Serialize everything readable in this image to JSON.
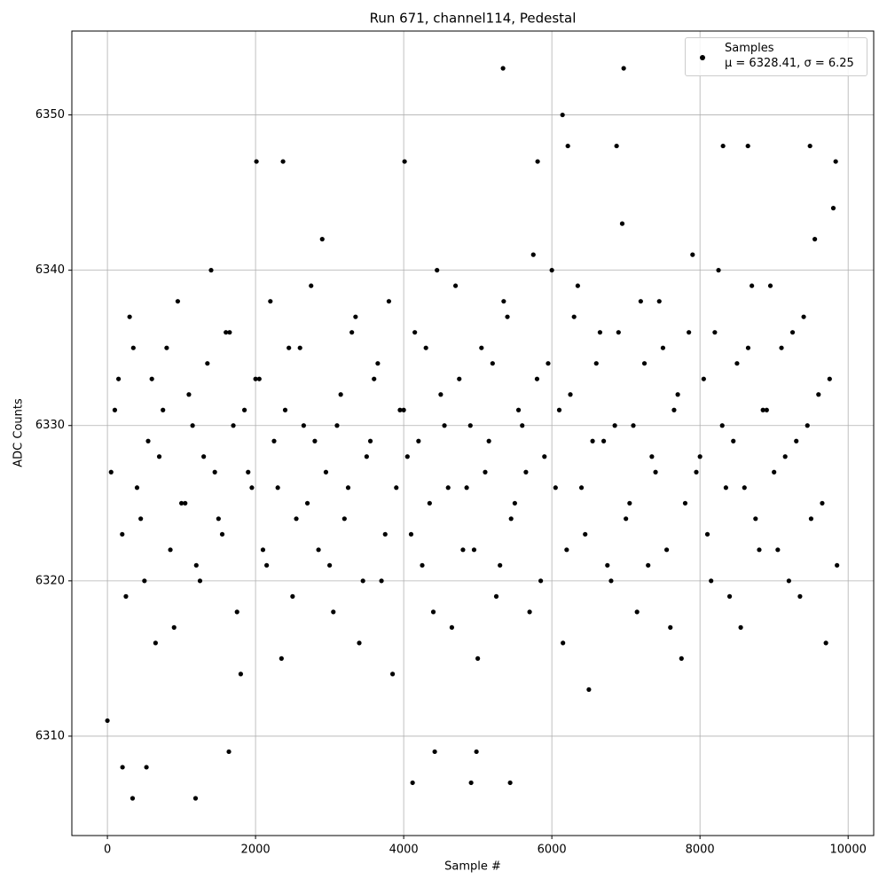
{
  "chart_data": {
    "type": "scatter",
    "title": "Run 671, channel114, Pedestal",
    "x_label": "Sample #",
    "y_label": "ADC Counts",
    "xlim": [
      -480,
      10345
    ],
    "ylim": [
      6303.6,
      6355.4
    ],
    "xticks": [
      0,
      2000,
      4000,
      6000,
      8000,
      10000
    ],
    "yticks": [
      6310,
      6320,
      6330,
      6340,
      6350
    ],
    "grid": true,
    "legend": "upper right",
    "x": [
      0,
      340,
      1190,
      5341,
      6970,
      6144,
      4120,
      5437,
      4910,
      204,
      527,
      1640,
      4419,
      4982,
      2012,
      2371,
      5808,
      4012,
      6216,
      6874,
      8311,
      8647,
      9485,
      9832,
      50,
      150,
      250,
      350,
      450,
      550,
      650,
      750,
      850,
      950,
      1050,
      1150,
      1250,
      1350,
      1450,
      1550,
      1650,
      1750,
      1850,
      1950,
      2050,
      2150,
      2250,
      2350,
      2450,
      2550,
      2650,
      2750,
      2850,
      2950,
      3050,
      3150,
      3250,
      3350,
      3450,
      3550,
      3650,
      3750,
      3850,
      3950,
      4050,
      4150,
      4250,
      4350,
      4450,
      4550,
      4650,
      4750,
      4850,
      4950,
      5050,
      5150,
      5250,
      5350,
      5450,
      5550,
      5650,
      5750,
      5850,
      5950,
      6050,
      6150,
      6250,
      6350,
      6450,
      6550,
      6650,
      6750,
      6850,
      6950,
      7050,
      7150,
      7250,
      7350,
      7450,
      7550,
      7650,
      7750,
      7850,
      7950,
      8050,
      8150,
      8250,
      8350,
      8450,
      8550,
      8650,
      8750,
      8850,
      8950,
      9050,
      9150,
      9250,
      9350,
      9450,
      9550,
      9650,
      9750,
      9850,
      100,
      200,
      300,
      400,
      500,
      600,
      700,
      800,
      900,
      1000,
      1100,
      1200,
      1300,
      1400,
      1500,
      1600,
      1700,
      1800,
      1900,
      2000,
      2100,
      2200,
      2300,
      2400,
      2500,
      2600,
      2700,
      2800,
      2900,
      3000,
      3100,
      3200,
      3300,
      3400,
      3500,
      3600,
      3700,
      3800,
      3900,
      4000,
      4100,
      4200,
      4300,
      4400,
      4500,
      4600,
      4700,
      4800,
      4900,
      5000,
      5100,
      5200,
      5300,
      5400,
      5500,
      5600,
      5700,
      5800,
      5900,
      6000,
      6100,
      6200,
      6300,
      6400,
      6500,
      6600,
      6700,
      6800,
      6900,
      7000,
      7100,
      7200,
      7300,
      7400,
      7500,
      7600,
      7700,
      7800,
      7900,
      8000,
      8100,
      8200,
      8300,
      8400,
      8500,
      8600,
      8700,
      8800,
      8900,
      9000,
      9100,
      9200,
      9300,
      9400,
      9500,
      9600,
      9700,
      9800
    ],
    "series": [
      {
        "name": "Samples\nμ = 6328.41, σ = 6.25",
        "color": "#000000",
        "values": [
          6311,
          6306,
          6306,
          6353,
          6353,
          6350,
          6307,
          6307,
          6307,
          6308,
          6308,
          6309,
          6309,
          6309,
          6347,
          6347,
          6347,
          6347,
          6348,
          6348,
          6348,
          6348,
          6348,
          6347,
          6327,
          6333,
          6319,
          6335,
          6324,
          6329,
          6316,
          6331,
          6322,
          6338,
          6325,
          6330,
          6320,
          6334,
          6327,
          6323,
          6336,
          6318,
          6331,
          6326,
          6333,
          6321,
          6329,
          6315,
          6335,
          6324,
          6330,
          6339,
          6322,
          6327,
          6318,
          6332,
          6326,
          6337,
          6320,
          6329,
          6334,
          6323,
          6314,
          6331,
          6328,
          6336,
          6321,
          6325,
          6340,
          6330,
          6317,
          6333,
          6326,
          6322,
          6335,
          6329,
          6319,
          6338,
          6324,
          6331,
          6327,
          6341,
          6320,
          6334,
          6326,
          6316,
          6332,
          6339,
          6323,
          6329,
          6336,
          6321,
          6330,
          6343,
          6325,
          6318,
          6334,
          6328,
          6338,
          6322,
          6331,
          6315,
          6336,
          6327,
          6333,
          6320,
          6340,
          6326,
          6329,
          6317,
          6335,
          6324,
          6331,
          6339,
          6322,
          6328,
          6336,
          6319,
          6330,
          6342,
          6325,
          6333,
          6321,
          6331,
          6323,
          6337,
          6326,
          6320,
          6333,
          6328,
          6335,
          6317,
          6325,
          6332,
          6321,
          6328,
          6340,
          6324,
          6336,
          6330,
          6314,
          6327,
          6333,
          6322,
          6338,
          6326,
          6331,
          6319,
          6335,
          6325,
          6329,
          6342,
          6321,
          6330,
          6324,
          6336,
          6316,
          6328,
          6333,
          6320,
          6338,
          6326,
          6331,
          6323,
          6329,
          6335,
          6318,
          6332,
          6326,
          6339,
          6322,
          6330,
          6315,
          6327,
          6334,
          6321,
          6337,
          6325,
          6330,
          6318,
          6333,
          6328,
          6340,
          6331,
          6322,
          6337,
          6326,
          6313,
          6334,
          6329,
          6320,
          6336,
          6324,
          6330,
          6338,
          6321,
          6327,
          6335,
          6317,
          6332,
          6325,
          6341,
          6328,
          6323,
          6336,
          6330,
          6319,
          6334,
          6326,
          6339,
          6322,
          6331,
          6327,
          6335,
          6320,
          6329,
          6337,
          6324,
          6332,
          6316,
          6344
        ]
      }
    ]
  }
}
